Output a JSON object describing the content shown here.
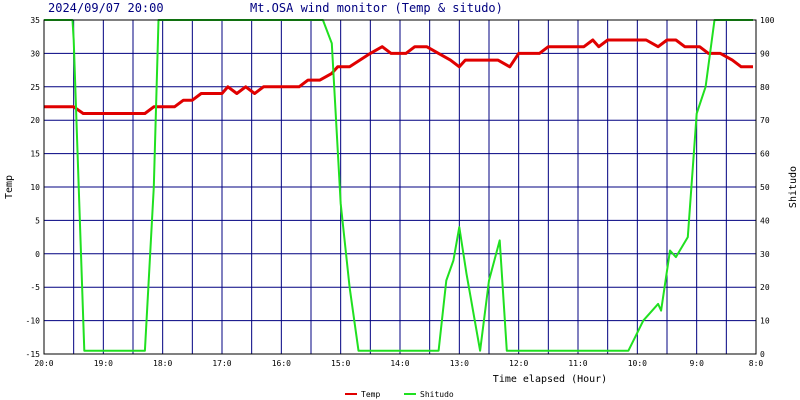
{
  "header": {
    "datetime": "2024/09/07 20:00",
    "title": "Mt.OSA wind monitor (Temp & situdo)"
  },
  "chart_data": {
    "type": "line",
    "xlabel": "Time elapsed (Hour)",
    "ylabel_left": "Temp",
    "ylabel_right": "Shitudo",
    "grid": true,
    "legend_position": "bottom-center",
    "x_tick_labels": [
      "20:0",
      "19:0",
      "18:0",
      "17:0",
      "16:0",
      "15:0",
      "14:0",
      "13:0",
      "12:0",
      "11:0",
      "10:0",
      "9:0",
      "8:0"
    ],
    "xlim": [
      0,
      12
    ],
    "y_left": {
      "lim": [
        -15,
        35
      ],
      "ticks": [
        "35",
        "30",
        "25",
        "20",
        "15",
        "10",
        "5",
        "0",
        "-5",
        "-10",
        "-15"
      ]
    },
    "y_right": {
      "lim": [
        0,
        100
      ],
      "ticks": [
        "100",
        "90",
        "80",
        "70",
        "60",
        "50",
        "40",
        "30",
        "20",
        "10",
        "0"
      ]
    },
    "series": [
      {
        "name": "Temp",
        "axis": "left",
        "color": "#e00000",
        "points": [
          [
            0,
            22
          ],
          [
            0.5,
            22
          ],
          [
            0.66,
            21
          ],
          [
            1.7,
            21
          ],
          [
            1.85,
            22
          ],
          [
            2.2,
            22
          ],
          [
            2.35,
            23
          ],
          [
            2.5,
            23
          ],
          [
            2.65,
            24
          ],
          [
            3.0,
            24
          ],
          [
            3.1,
            25
          ],
          [
            3.25,
            24
          ],
          [
            3.4,
            25
          ],
          [
            3.55,
            24
          ],
          [
            3.7,
            25
          ],
          [
            4.3,
            25
          ],
          [
            4.45,
            26
          ],
          [
            4.65,
            26
          ],
          [
            4.85,
            27
          ],
          [
            4.95,
            28
          ],
          [
            5.15,
            28
          ],
          [
            5.5,
            30
          ],
          [
            5.7,
            31
          ],
          [
            5.85,
            30
          ],
          [
            6.1,
            30
          ],
          [
            6.25,
            31
          ],
          [
            6.45,
            31
          ],
          [
            6.65,
            30
          ],
          [
            6.85,
            29
          ],
          [
            7.0,
            28
          ],
          [
            7.1,
            29
          ],
          [
            7.65,
            29
          ],
          [
            7.85,
            28
          ],
          [
            8.0,
            30
          ],
          [
            8.35,
            30
          ],
          [
            8.5,
            31
          ],
          [
            8.9,
            31
          ],
          [
            9.1,
            31
          ],
          [
            9.25,
            32
          ],
          [
            9.35,
            31
          ],
          [
            9.5,
            32
          ],
          [
            9.7,
            32
          ],
          [
            10.15,
            32
          ],
          [
            10.35,
            31
          ],
          [
            10.5,
            32
          ],
          [
            10.65,
            32
          ],
          [
            10.8,
            31
          ],
          [
            11.05,
            31
          ],
          [
            11.2,
            30
          ],
          [
            11.4,
            30
          ],
          [
            11.6,
            29
          ],
          [
            11.75,
            28
          ],
          [
            11.95,
            28
          ]
        ]
      },
      {
        "name": "Shitudo",
        "axis": "right",
        "color": "#20e020",
        "points": [
          [
            0,
            100
          ],
          [
            0.48,
            100
          ],
          [
            0.5,
            94
          ],
          [
            0.68,
            1
          ],
          [
            1.7,
            1
          ],
          [
            1.85,
            50
          ],
          [
            1.93,
            100
          ],
          [
            4.7,
            100
          ],
          [
            4.85,
            93
          ],
          [
            5.0,
            45
          ],
          [
            5.15,
            20
          ],
          [
            5.3,
            1
          ],
          [
            6.45,
            1
          ],
          [
            6.65,
            1
          ],
          [
            6.78,
            22
          ],
          [
            6.9,
            28
          ],
          [
            7.0,
            38
          ],
          [
            7.12,
            24
          ],
          [
            7.35,
            1
          ],
          [
            7.5,
            22
          ],
          [
            7.68,
            34
          ],
          [
            7.8,
            1
          ],
          [
            9.85,
            1
          ],
          [
            10.1,
            10
          ],
          [
            10.35,
            15
          ],
          [
            10.4,
            13
          ],
          [
            10.55,
            31
          ],
          [
            10.65,
            29
          ],
          [
            10.85,
            35
          ],
          [
            11.0,
            72
          ],
          [
            11.15,
            80
          ],
          [
            11.3,
            100
          ],
          [
            11.95,
            100
          ]
        ]
      }
    ]
  }
}
